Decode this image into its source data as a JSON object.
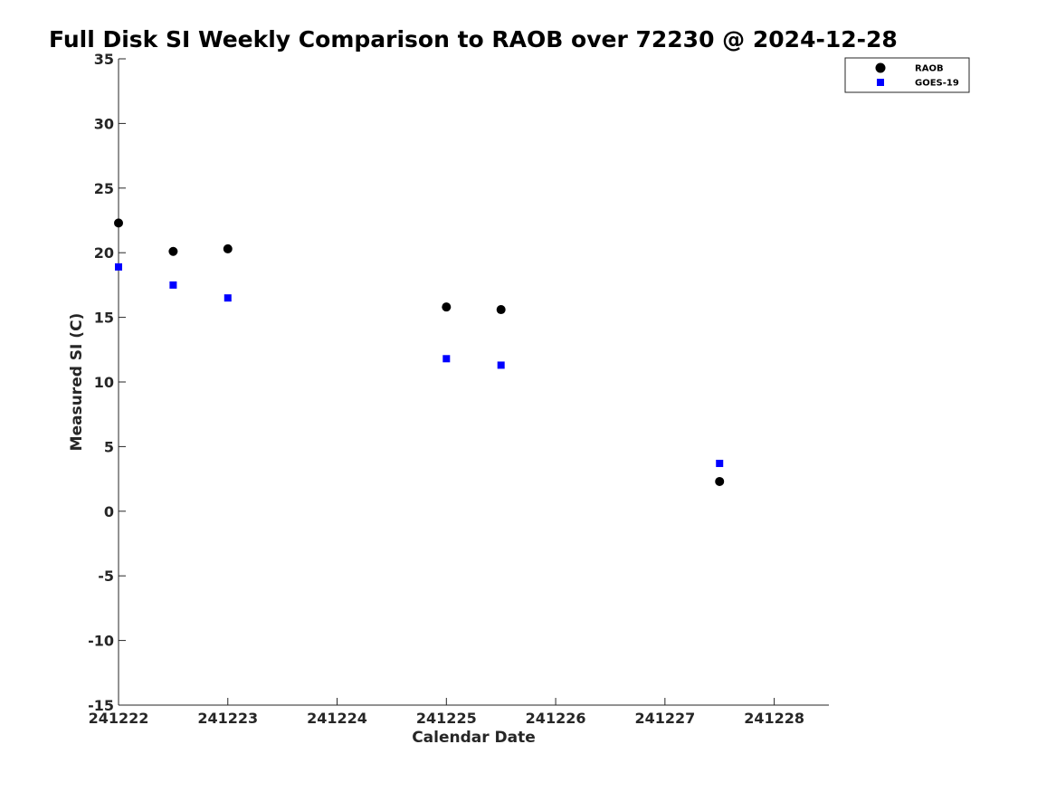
{
  "chart_data": {
    "type": "scatter",
    "title": "Full Disk SI Weekly Comparison to RAOB over 72230 @ 2024-12-28",
    "xlabel": "Calendar Date",
    "ylabel": "Measured SI (C)",
    "xlim": [
      "2024-12-22",
      "2024-12-28 12:00"
    ],
    "ylim": [
      -15,
      35
    ],
    "x_ticks": [
      "241222",
      "241223",
      "241224",
      "241225",
      "241226",
      "241227",
      "241228"
    ],
    "y_ticks": [
      "35",
      "30",
      "25",
      "20",
      "15",
      "10",
      "5",
      "0",
      "-5",
      "-10",
      "-15"
    ],
    "grid": false,
    "legend_position": "top-right",
    "series": [
      {
        "name": "RAOB",
        "marker": "circle",
        "color": "#000000",
        "points": [
          {
            "x": "2024-12-22 00:00",
            "y": 22.3
          },
          {
            "x": "2024-12-22 12:00",
            "y": 20.1
          },
          {
            "x": "2024-12-23 00:00",
            "y": 20.3
          },
          {
            "x": "2024-12-25 00:00",
            "y": 15.8
          },
          {
            "x": "2024-12-25 12:00",
            "y": 15.6
          },
          {
            "x": "2024-12-27 12:00",
            "y": 2.3
          }
        ]
      },
      {
        "name": "GOES-19",
        "marker": "square",
        "color": "#0000ff",
        "points": [
          {
            "x": "2024-12-22 00:00",
            "y": 18.9
          },
          {
            "x": "2024-12-22 12:00",
            "y": 17.5
          },
          {
            "x": "2024-12-23 00:00",
            "y": 16.5
          },
          {
            "x": "2024-12-25 00:00",
            "y": 11.8
          },
          {
            "x": "2024-12-25 12:00",
            "y": 11.3
          },
          {
            "x": "2024-12-27 12:00",
            "y": 3.7
          }
        ]
      }
    ]
  }
}
